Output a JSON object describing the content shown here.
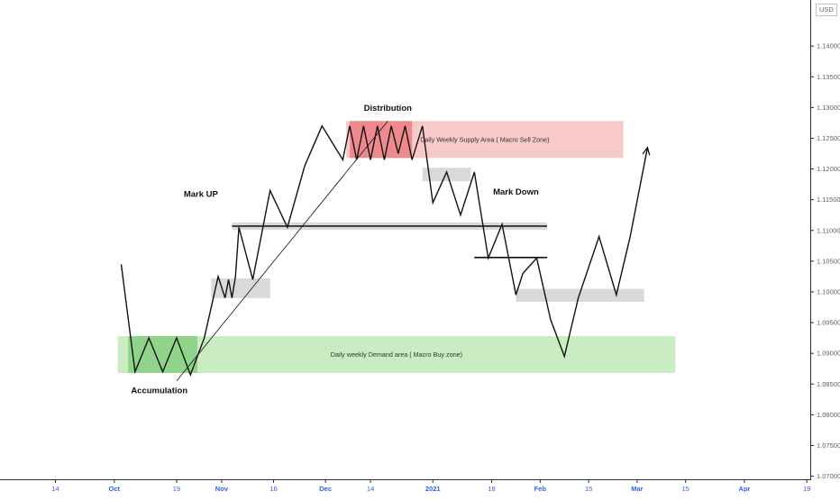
{
  "chart_data": {
    "type": "line",
    "currency_badge": "USD",
    "y_ticks": [
      "1.14000",
      "1.13500",
      "1.13000",
      "1.12500",
      "1.12000",
      "1.11500",
      "1.11000",
      "1.10500",
      "1.10000",
      "1.09500",
      "1.09000",
      "1.08500",
      "1.08000",
      "1.07500",
      "1.07000"
    ],
    "y_tick_values": [
      1.14,
      1.135,
      1.13,
      1.125,
      1.12,
      1.115,
      1.11,
      1.105,
      1.1,
      1.095,
      1.09,
      1.085,
      1.08,
      1.075,
      1.07
    ],
    "ylim": [
      1.0695,
      1.1475
    ],
    "x_ticks": [
      {
        "label": "14",
        "day": -17,
        "bold": false
      },
      {
        "label": "Oct",
        "day": 0,
        "bold": true
      },
      {
        "label": "19",
        "day": 18,
        "bold": false
      },
      {
        "label": "Nov",
        "day": 31,
        "bold": true
      },
      {
        "label": "16",
        "day": 46,
        "bold": false
      },
      {
        "label": "Dec",
        "day": 61,
        "bold": true
      },
      {
        "label": "14",
        "day": 74,
        "bold": false
      },
      {
        "label": "2021",
        "day": 92,
        "bold": true
      },
      {
        "label": "18",
        "day": 109,
        "bold": false
      },
      {
        "label": "Feb",
        "day": 123,
        "bold": true
      },
      {
        "label": "15",
        "day": 137,
        "bold": false
      },
      {
        "label": "Mar",
        "day": 151,
        "bold": true
      },
      {
        "label": "15",
        "day": 165,
        "bold": false
      },
      {
        "label": "Apr",
        "day": 182,
        "bold": true
      },
      {
        "label": "19",
        "day": 200,
        "bold": false
      }
    ],
    "xlim": [
      -33,
      201
    ],
    "series": [
      {
        "x": [
          2,
          6,
          10,
          14,
          18,
          22,
          26,
          30,
          32,
          33,
          34,
          35,
          36,
          40,
          45,
          50,
          55,
          60,
          66,
          68,
          70,
          72,
          74,
          76,
          78,
          80,
          82,
          84,
          86,
          89,
          92,
          96,
          100,
          104,
          108,
          112,
          116,
          118,
          122,
          126,
          130,
          134,
          140,
          145,
          149,
          154,
          160
        ],
        "values": [
          1.1045,
          1.087,
          1.0925,
          1.087,
          1.0925,
          1.0865,
          1.0925,
          1.1025,
          1.099,
          1.102,
          1.099,
          1.1025,
          1.1105,
          1.102,
          1.1165,
          1.1105,
          1.1205,
          1.127,
          1.1215,
          1.127,
          1.1215,
          1.127,
          1.1215,
          1.127,
          1.1215,
          1.127,
          1.1225,
          1.127,
          1.1215,
          1.127,
          1.1145,
          1.1195,
          1.1125,
          1.1195,
          1.1055,
          1.111,
          1.0995,
          1.103,
          1.1055,
          1.0955,
          1.0895,
          1.099,
          1.109,
          1.0995,
          1.109,
          1.1235,
          1.1225
        ]
      }
    ],
    "zones": [
      {
        "label": "Daily Weekly Supply Area ( Macro Sell Zone)",
        "x0": 67,
        "x1": 147,
        "y0": 1.1218,
        "y1": 1.1278,
        "kind": "supply"
      },
      {
        "label": "Daily weekly Demand area ( Macro Buy zone)",
        "x0": 1,
        "x1": 162,
        "y0": 1.0868,
        "y1": 1.0928,
        "kind": "demand"
      },
      {
        "label": "",
        "x0": 68,
        "x1": 86,
        "y0": 1.1218,
        "y1": 1.1278,
        "kind": "supply-dark"
      },
      {
        "label": "",
        "x0": 4,
        "x1": 24,
        "y0": 1.0868,
        "y1": 1.0928,
        "kind": "demand-dark"
      },
      {
        "label": "",
        "x0": 28,
        "x1": 45,
        "y0": 1.099,
        "y1": 1.1022,
        "kind": "grey"
      },
      {
        "label": "",
        "x0": 34,
        "x1": 125,
        "y0": 1.1101,
        "y1": 1.1113,
        "kind": "grey"
      },
      {
        "label": "",
        "x0": 89,
        "x1": 103,
        "y0": 1.118,
        "y1": 1.1202,
        "kind": "grey"
      },
      {
        "label": "",
        "x0": 116,
        "x1": 153,
        "y0": 1.0984,
        "y1": 1.1005,
        "kind": "grey"
      }
    ],
    "h_lines": [
      {
        "x0": 34,
        "x1": 125,
        "y": 1.1107
      },
      {
        "x0": 104,
        "x1": 125,
        "y": 1.1056
      }
    ],
    "trendline": {
      "x0": 18,
      "y0": 1.0855,
      "x1": 79,
      "y1": 1.1278
    },
    "annotations": [
      {
        "text": "Distribution",
        "x": 79,
        "y": 1.1295
      },
      {
        "text": "Mark UP",
        "x": 25,
        "y": 1.1155
      },
      {
        "text": "Mark Down",
        "x": 116,
        "y": 1.1158
      },
      {
        "text": "Accumulation",
        "x": 13,
        "y": 1.0835
      }
    ]
  },
  "colors": {
    "supply_fill": "#f7c9c9",
    "supply_dark": "#ee8a8e",
    "demand_fill": "#c9ecc3",
    "demand_dark": "#8fd48a",
    "grey_fill": "#d9d9d9",
    "axis_line": "#2a2e39",
    "time_text": "#2962ff",
    "price_text": "#5d606b"
  }
}
